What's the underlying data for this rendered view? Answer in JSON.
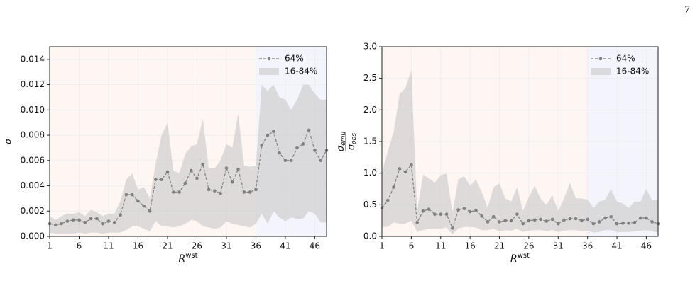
{
  "page_number": "7",
  "chart_data": [
    {
      "type": "line",
      "xlabel": "R",
      "xlabel_sup": "wst",
      "ylabel": "σ",
      "x": [
        1,
        2,
        3,
        4,
        5,
        6,
        7,
        8,
        9,
        10,
        11,
        12,
        13,
        14,
        15,
        16,
        17,
        18,
        19,
        20,
        21,
        22,
        23,
        24,
        25,
        26,
        27,
        28,
        29,
        30,
        31,
        32,
        33,
        34,
        35,
        36,
        37,
        38,
        39,
        40,
        41,
        42,
        43,
        44,
        45,
        46,
        47,
        48
      ],
      "xlim": [
        1,
        48
      ],
      "xticks": [
        1,
        6,
        11,
        16,
        21,
        26,
        31,
        36,
        41,
        46
      ],
      "ylim": [
        0,
        0.015
      ],
      "yticks": [
        {
          "value": 0,
          "label": "0.000"
        },
        {
          "value": 0.002,
          "label": "0.002"
        },
        {
          "value": 0.004,
          "label": "0.004"
        },
        {
          "value": 0.006,
          "label": "0.006"
        },
        {
          "value": 0.008,
          "label": "0.008"
        },
        {
          "value": 0.01,
          "label": "0.010"
        },
        {
          "value": 0.012,
          "label": "0.012"
        },
        {
          "value": 0.014,
          "label": "0.014"
        }
      ],
      "grid": true,
      "legend": "upper right",
      "regions": [
        {
          "from": 1,
          "to": 36,
          "color": "#fdf6f3"
        },
        {
          "from": 36,
          "to": 48,
          "color": "#f4f5fc"
        }
      ],
      "series": [
        {
          "name": "64%",
          "color": "#808080",
          "values": [
            0.001,
            0.0009,
            0.001,
            0.0012,
            0.0013,
            0.0013,
            0.0011,
            0.0014,
            0.0014,
            0.001,
            0.0012,
            0.0011,
            0.0017,
            0.0033,
            0.0033,
            0.0028,
            0.0024,
            0.002,
            0.0045,
            0.0045,
            0.0051,
            0.0035,
            0.0035,
            0.0042,
            0.0052,
            0.0046,
            0.0057,
            0.0037,
            0.0036,
            0.0034,
            0.0054,
            0.0043,
            0.0053,
            0.0035,
            0.0035,
            0.0037,
            0.0072,
            0.008,
            0.0083,
            0.0066,
            0.006,
            0.006,
            0.007,
            0.0073,
            0.0084,
            0.0068,
            0.006,
            0.0068
          ]
        },
        {
          "name": "16-84%",
          "color": "#c8c8c8",
          "high": [
            0.0016,
            0.0013,
            0.0016,
            0.0018,
            0.0018,
            0.0019,
            0.0016,
            0.0021,
            0.0019,
            0.0016,
            0.0018,
            0.0018,
            0.0028,
            0.0045,
            0.005,
            0.0037,
            0.0039,
            0.003,
            0.0058,
            0.008,
            0.009,
            0.0052,
            0.005,
            0.0065,
            0.0071,
            0.0073,
            0.0093,
            0.0054,
            0.0054,
            0.006,
            0.0073,
            0.007,
            0.0097,
            0.0056,
            0.0055,
            0.0056,
            0.012,
            0.0115,
            0.012,
            0.011,
            0.0108,
            0.01,
            0.0108,
            0.012,
            0.012,
            0.0113,
            0.0108,
            0.0108
          ],
          "low": [
            0.0003,
            0.0002,
            0.0002,
            0.0002,
            0.0002,
            0.0003,
            0.0002,
            0.0003,
            0.0003,
            0.0002,
            0.0003,
            0.0003,
            0.0003,
            0.0005,
            0.0008,
            0.0008,
            0.0006,
            0.0004,
            0.0012,
            0.0008,
            0.0008,
            0.0007,
            0.0008,
            0.001,
            0.0013,
            0.0012,
            0.0008,
            0.0007,
            0.0006,
            0.0007,
            0.0012,
            0.001,
            0.0009,
            0.0008,
            0.0007,
            0.001,
            0.0018,
            0.001,
            0.002,
            0.0015,
            0.0012,
            0.0015,
            0.0014,
            0.0014,
            0.002,
            0.0018,
            0.0011,
            0.0011
          ]
        }
      ]
    },
    {
      "type": "line",
      "xlabel": "R",
      "xlabel_sup": "wst",
      "ylabel_fraction": {
        "num": "σ",
        "num_sub": "emu",
        "den": "σ",
        "den_sub": "obs"
      },
      "x": [
        1,
        2,
        3,
        4,
        5,
        6,
        7,
        8,
        9,
        10,
        11,
        12,
        13,
        14,
        15,
        16,
        17,
        18,
        19,
        20,
        21,
        22,
        23,
        24,
        25,
        26,
        27,
        28,
        29,
        30,
        31,
        32,
        33,
        34,
        35,
        36,
        37,
        38,
        39,
        40,
        41,
        42,
        43,
        44,
        45,
        46,
        47,
        48
      ],
      "xlim": [
        1,
        48
      ],
      "xticks": [
        1,
        6,
        11,
        16,
        21,
        26,
        31,
        36,
        41,
        46
      ],
      "ylim": [
        0,
        3
      ],
      "yticks": [
        {
          "value": 0,
          "label": "0.0"
        },
        0.5,
        {
          "value": 1,
          "label": "1.0"
        },
        1.5,
        {
          "value": 2,
          "label": "2.0"
        },
        2.5,
        {
          "value": 3,
          "label": "3.0"
        }
      ],
      "grid": true,
      "legend": "upper right",
      "regions": [
        {
          "from": 1,
          "to": 36,
          "color": "#fdf6f3"
        },
        {
          "from": 36,
          "to": 48,
          "color": "#f4f5fc"
        }
      ],
      "series": [
        {
          "name": "64%",
          "color": "#808080",
          "values": [
            0.45,
            0.57,
            0.78,
            1.07,
            1.02,
            1.13,
            0.22,
            0.4,
            0.43,
            0.35,
            0.35,
            0.35,
            0.13,
            0.42,
            0.44,
            0.39,
            0.41,
            0.32,
            0.23,
            0.31,
            0.23,
            0.25,
            0.25,
            0.35,
            0.2,
            0.25,
            0.26,
            0.27,
            0.24,
            0.27,
            0.2,
            0.26,
            0.28,
            0.28,
            0.25,
            0.27,
            0.2,
            0.23,
            0.29,
            0.31,
            0.2,
            0.21,
            0.21,
            0.22,
            0.29,
            0.29,
            0.23,
            0.2
          ]
        },
        {
          "name": "16-84%",
          "color": "#c8c8c8",
          "high": [
            1.0,
            1.35,
            1.65,
            2.25,
            2.35,
            2.63,
            0.4,
            0.98,
            0.92,
            0.85,
            0.97,
            0.99,
            0.38,
            0.9,
            0.95,
            0.8,
            0.9,
            0.7,
            0.45,
            0.78,
            0.84,
            0.6,
            0.55,
            0.78,
            0.4,
            0.62,
            0.8,
            0.6,
            0.5,
            0.65,
            0.4,
            0.6,
            0.85,
            0.6,
            0.6,
            0.58,
            0.45,
            0.55,
            0.58,
            0.75,
            0.55,
            0.52,
            0.45,
            0.55,
            0.55,
            0.75,
            0.57,
            0.58
          ],
          "low": [
            0.15,
            0.15,
            0.22,
            0.2,
            0.2,
            0.25,
            0.07,
            0.1,
            0.12,
            0.12,
            0.12,
            0.14,
            0.03,
            0.12,
            0.15,
            0.15,
            0.14,
            0.1,
            0.1,
            0.12,
            0.08,
            0.1,
            0.09,
            0.12,
            0.07,
            0.09,
            0.1,
            0.1,
            0.08,
            0.1,
            0.07,
            0.09,
            0.1,
            0.1,
            0.08,
            0.09,
            0.06,
            0.07,
            0.1,
            0.1,
            0.07,
            0.07,
            0.07,
            0.08,
            0.09,
            0.1,
            0.08,
            0.06
          ]
        }
      ]
    }
  ]
}
